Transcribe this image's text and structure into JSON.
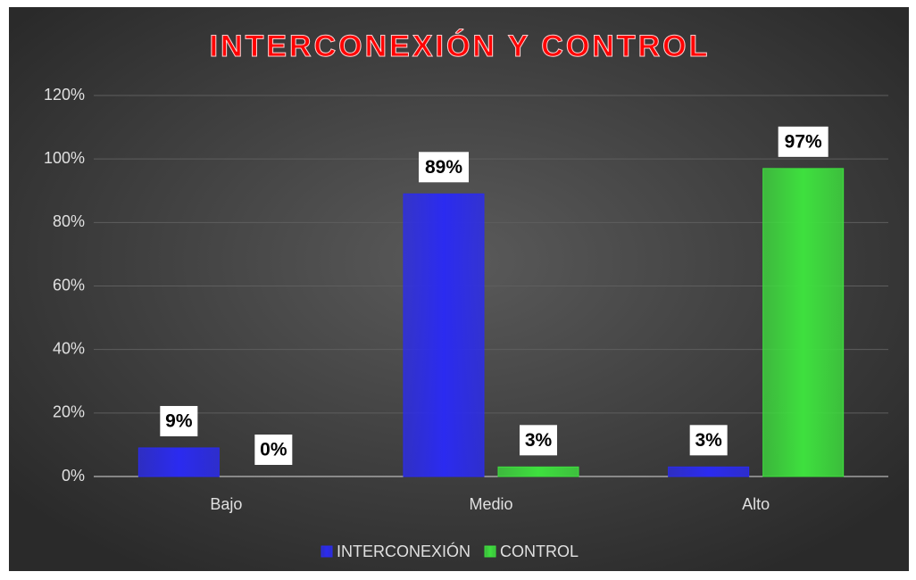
{
  "chart_data": {
    "type": "bar",
    "title": "INTERCONEXIÓN Y CONTROL",
    "categories": [
      "Bajo",
      "Medio",
      "Alto"
    ],
    "series": [
      {
        "name": "INTERCONEXIÓN",
        "color": "#2b2bf0",
        "values": [
          9,
          89,
          3
        ],
        "value_labels": [
          "9%",
          "89%",
          "3%"
        ]
      },
      {
        "name": "CONTROL",
        "color": "#3ee03e",
        "values": [
          0,
          3,
          97
        ],
        "value_labels": [
          "0%",
          "3%",
          "97%"
        ]
      }
    ],
    "ylim": [
      0,
      120
    ],
    "yticks": [
      {
        "value": 0,
        "label": "0%"
      },
      {
        "value": 20,
        "label": "20%"
      },
      {
        "value": 40,
        "label": "40%"
      },
      {
        "value": 60,
        "label": "60%"
      },
      {
        "value": 80,
        "label": "80%"
      },
      {
        "value": 100,
        "label": "100%"
      },
      {
        "value": 120,
        "label": "120%"
      }
    ],
    "grid": true,
    "legend": "bottom"
  }
}
